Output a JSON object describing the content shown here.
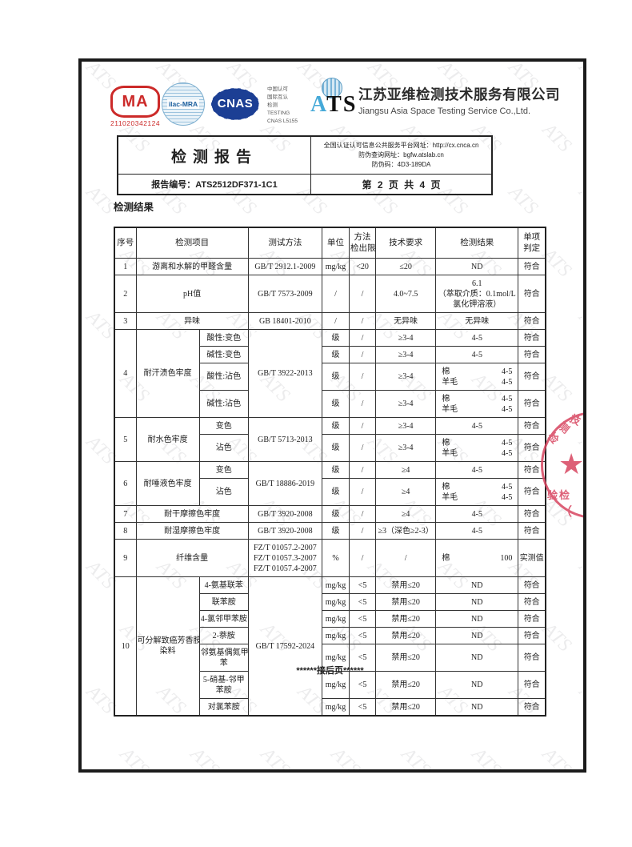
{
  "header": {
    "cma_label": "MA",
    "cma_number": "211020342124",
    "ilac_label": "ilac-MRA",
    "cnas_label": "CNAS",
    "accreditation_lines": [
      "中国认可",
      "国际互认",
      "检测",
      "TESTING",
      "CNAS L5155"
    ],
    "ats_logo_a": "A",
    "ats_logo_ts": "TS",
    "company_cn": "江苏亚维检测技术服务有限公司",
    "company_en": "Jiangsu Asia Space Testing Service Co.,Ltd."
  },
  "report_box": {
    "title": "检测报告",
    "report_no": "报告编号：ATS2512DF371-1C1",
    "info_lines": [
      "全国认证认可信息公共服务平台网址：http://cx.cnca.cn",
      "防伪查询网址：bgfw.atslab.cn",
      "防伪码：4D3-189DA"
    ],
    "page_info": "第 2 页 共 4 页"
  },
  "section_title": "检测结果",
  "table": {
    "header_cells": [
      {
        "t": "序号"
      },
      {
        "t": "检测项目",
        "cs": 2
      },
      {
        "t": "测试方法"
      },
      {
        "t": "单位"
      },
      {
        "t": "方法\n检出限"
      },
      {
        "t": "技术要求"
      },
      {
        "t": "检测结果"
      },
      {
        "t": "单项\n判定"
      }
    ],
    "rows": [
      [
        {
          "t": "1"
        },
        {
          "t": "游离和水解的甲醛含量",
          "cs": 2
        },
        {
          "t": "GB/T 2912.1-2009"
        },
        {
          "t": "mg/kg"
        },
        {
          "t": "<20"
        },
        {
          "t": "≤20"
        },
        {
          "t": "ND"
        },
        {
          "t": "符合"
        }
      ],
      [
        {
          "t": "2"
        },
        {
          "t": "pH值",
          "cs": 2
        },
        {
          "t": "GB/T 7573-2009"
        },
        {
          "t": "/"
        },
        {
          "t": "/"
        },
        {
          "t": "4.0~7.5"
        },
        {
          "t": "6.1\n（萃取介质：0.1mol/L\n氯化钾溶液）"
        },
        {
          "t": "符合"
        }
      ],
      [
        {
          "t": "3"
        },
        {
          "t": "异味",
          "cs": 2
        },
        {
          "t": "GB 18401-2010"
        },
        {
          "t": "/"
        },
        {
          "t": "/"
        },
        {
          "t": "无异味"
        },
        {
          "t": "无异味"
        },
        {
          "t": "符合"
        }
      ],
      [
        {
          "t": "4",
          "rs": 4
        },
        {
          "t": "耐汗渍色牢度",
          "rs": 4
        },
        {
          "t": "酸性:变色"
        },
        {
          "t": "GB/T 3922-2013",
          "rs": 4
        },
        {
          "t": "级"
        },
        {
          "t": "/"
        },
        {
          "t": "≥3-4"
        },
        {
          "t": "4-5"
        },
        {
          "t": "符合"
        }
      ],
      [
        {
          "t": "碱性:变色"
        },
        {
          "t": "级"
        },
        {
          "t": "/"
        },
        {
          "t": "≥3-4"
        },
        {
          "t": "4-5"
        },
        {
          "t": "符合"
        }
      ],
      [
        {
          "t": "酸性:沾色"
        },
        {
          "t": "级"
        },
        {
          "t": "/"
        },
        {
          "t": "≥3-4"
        },
        {
          "pairs": [
            [
              "棉",
              "4-5"
            ],
            [
              "羊毛",
              "4-5"
            ]
          ]
        },
        {
          "t": "符合"
        }
      ],
      [
        {
          "t": "碱性:沾色"
        },
        {
          "t": "级"
        },
        {
          "t": "/"
        },
        {
          "t": "≥3-4"
        },
        {
          "pairs": [
            [
              "棉",
              "4-5"
            ],
            [
              "羊毛",
              "4-5"
            ]
          ]
        },
        {
          "t": "符合"
        }
      ],
      [
        {
          "t": "5",
          "rs": 2
        },
        {
          "t": "耐水色牢度",
          "rs": 2
        },
        {
          "t": "变色"
        },
        {
          "t": "GB/T 5713-2013",
          "rs": 2
        },
        {
          "t": "级"
        },
        {
          "t": "/"
        },
        {
          "t": "≥3-4"
        },
        {
          "t": "4-5"
        },
        {
          "t": "符合"
        }
      ],
      [
        {
          "t": "沾色"
        },
        {
          "t": "级"
        },
        {
          "t": "/"
        },
        {
          "t": "≥3-4"
        },
        {
          "pairs": [
            [
              "棉",
              "4-5"
            ],
            [
              "羊毛",
              "4-5"
            ]
          ]
        },
        {
          "t": "符合"
        }
      ],
      [
        {
          "t": "6",
          "rs": 2
        },
        {
          "t": "耐唾液色牢度",
          "rs": 2
        },
        {
          "t": "变色"
        },
        {
          "t": "GB/T  18886-2019",
          "rs": 2
        },
        {
          "t": "级"
        },
        {
          "t": "/"
        },
        {
          "t": "≥4"
        },
        {
          "t": "4-5"
        },
        {
          "t": "符合"
        }
      ],
      [
        {
          "t": "沾色"
        },
        {
          "t": "级"
        },
        {
          "t": "/"
        },
        {
          "t": "≥4"
        },
        {
          "pairs": [
            [
              "棉",
              "4-5"
            ],
            [
              "羊毛",
              "4-5"
            ]
          ]
        },
        {
          "t": "符合"
        }
      ],
      [
        {
          "t": "7"
        },
        {
          "t": "耐干摩擦色牢度",
          "cs": 2
        },
        {
          "t": "GB/T 3920-2008"
        },
        {
          "t": "级"
        },
        {
          "t": "/"
        },
        {
          "t": "≥4"
        },
        {
          "t": "4-5"
        },
        {
          "t": "符合"
        }
      ],
      [
        {
          "t": "8"
        },
        {
          "t": "耐湿摩擦色牢度",
          "cs": 2
        },
        {
          "t": "GB/T 3920-2008"
        },
        {
          "t": "级"
        },
        {
          "t": "/"
        },
        {
          "t": "≥3（深色≥2-3）"
        },
        {
          "t": "4-5"
        },
        {
          "t": "符合"
        }
      ],
      [
        {
          "t": "9"
        },
        {
          "t": "纤维含量",
          "cs": 2
        },
        {
          "t": "FZ/T 01057.2-2007\nFZ/T 01057.3-2007\nFZ/T 01057.4-2007"
        },
        {
          "t": "%"
        },
        {
          "t": "/"
        },
        {
          "t": "/"
        },
        {
          "pairs": [
            [
              "棉",
              "100"
            ]
          ]
        },
        {
          "t": "实测值"
        }
      ],
      [
        {
          "t": "10",
          "rs": 7
        },
        {
          "t": "可分解致癌芳香胺\n染料",
          "rs": 7
        },
        {
          "t": "4-氨基联苯"
        },
        {
          "t": "GB/T 17592-2024",
          "rs": 7
        },
        {
          "t": "mg/kg"
        },
        {
          "t": "<5"
        },
        {
          "t": "禁用≤20"
        },
        {
          "t": "ND"
        },
        {
          "t": "符合"
        }
      ],
      [
        {
          "t": "联苯胺"
        },
        {
          "t": "mg/kg"
        },
        {
          "t": "<5"
        },
        {
          "t": "禁用≤20"
        },
        {
          "t": "ND"
        },
        {
          "t": "符合"
        }
      ],
      [
        {
          "t": "4-氯邻甲苯胺"
        },
        {
          "t": "mg/kg"
        },
        {
          "t": "<5"
        },
        {
          "t": "禁用≤20"
        },
        {
          "t": "ND"
        },
        {
          "t": "符合"
        }
      ],
      [
        {
          "t": "2-萘胺"
        },
        {
          "t": "mg/kg"
        },
        {
          "t": "<5"
        },
        {
          "t": "禁用≤20"
        },
        {
          "t": "ND"
        },
        {
          "t": "符合"
        }
      ],
      [
        {
          "t": "邻氨基偶氮甲\n苯"
        },
        {
          "t": "mg/kg"
        },
        {
          "t": "<5"
        },
        {
          "t": "禁用≤20"
        },
        {
          "t": "ND"
        },
        {
          "t": "符合"
        }
      ],
      [
        {
          "t": "5-硝基-邻甲\n苯胺"
        },
        {
          "t": "mg/kg"
        },
        {
          "t": "<5"
        },
        {
          "t": "禁用≤20"
        },
        {
          "t": "ND"
        },
        {
          "t": "符合"
        }
      ],
      [
        {
          "t": "对氯苯胺"
        },
        {
          "t": "mg/kg"
        },
        {
          "t": "<5"
        },
        {
          "t": "禁用≤20"
        },
        {
          "t": "ND"
        },
        {
          "t": "符合"
        }
      ]
    ]
  },
  "footer_note": "******接后页******",
  "watermark": {
    "text": "ATS"
  },
  "stamp": {
    "arc_chars": [
      "检",
      "测",
      "技"
    ],
    "bottom_text": "验检",
    "paren": "（"
  },
  "colors": {
    "cma_red": "#cc2a29",
    "logo_blue": "#1c3f94",
    "ats_blue": "#45a9d8",
    "stamp_red": "#d84560"
  }
}
